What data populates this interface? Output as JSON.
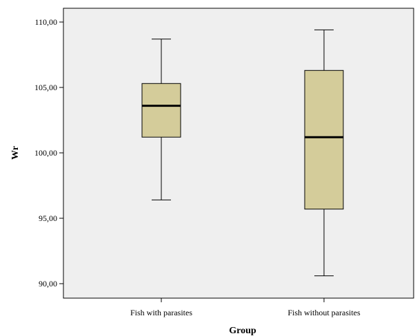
{
  "chart_data": {
    "type": "boxplot",
    "title": "",
    "xlabel": "Group",
    "ylabel": "Wr",
    "ylim": [
      89,
      111
    ],
    "yticks": [
      {
        "value": 90,
        "label": "90,00"
      },
      {
        "value": 95,
        "label": "95,00"
      },
      {
        "value": 100,
        "label": "100,00"
      },
      {
        "value": 105,
        "label": "105,00"
      },
      {
        "value": 110,
        "label": "110,00"
      }
    ],
    "categories": [
      "Fish with parasites",
      "Fish without parasites"
    ],
    "boxes": [
      {
        "category": "Fish with parasites",
        "min": 96.4,
        "q1": 101.2,
        "median": 103.6,
        "q3": 105.3,
        "max": 108.7
      },
      {
        "category": "Fish without parasites",
        "min": 90.6,
        "q1": 95.7,
        "median": 101.2,
        "q3": 106.3,
        "max": 109.4
      }
    ],
    "grid": false,
    "colors": {
      "plot_background": "#efefef",
      "box_fill": "#d4cc9a",
      "stroke": "#000000"
    }
  }
}
